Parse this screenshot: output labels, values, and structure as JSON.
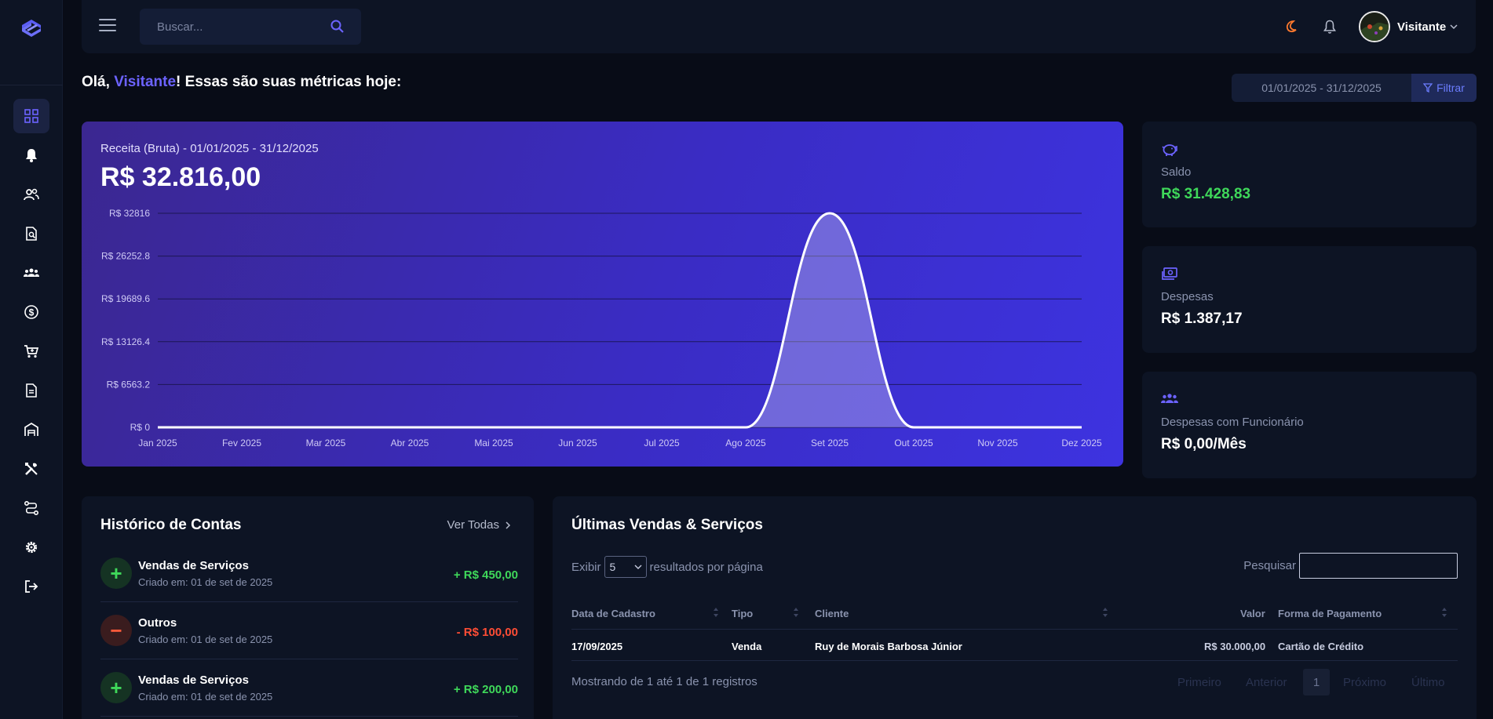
{
  "topbar": {
    "search_placeholder": "Buscar...",
    "user_name": "Visitante"
  },
  "greeting": {
    "prefix": "Olá, ",
    "name": "Visitante",
    "suffix": "! Essas são suas métricas hoje:"
  },
  "filter": {
    "date_range": "01/01/2025 - 31/12/2025",
    "button_label": "Filtrar"
  },
  "revenue": {
    "label": "Receita (Bruta) - 01/01/2025 - 31/12/2025",
    "value": "R$ 32.816,00"
  },
  "chart_data": {
    "type": "area",
    "categories": [
      "Jan 2025",
      "Fev 2025",
      "Mar 2025",
      "Abr 2025",
      "Mai 2025",
      "Jun 2025",
      "Jul 2025",
      "Ago 2025",
      "Set 2025",
      "Out 2025",
      "Nov 2025",
      "Dez 2025"
    ],
    "values": [
      0,
      0,
      0,
      0,
      0,
      0,
      0,
      0,
      32816,
      0,
      0,
      0
    ],
    "y_ticks": [
      "R$ 0",
      "R$ 6563.2",
      "R$ 13126.4",
      "R$ 19689.6",
      "R$ 26252.8",
      "R$ 32816"
    ],
    "ylim": [
      0,
      32816
    ],
    "grid": true,
    "line_color": "#ffffff"
  },
  "stats": [
    {
      "icon": "piggy-bank-icon",
      "label": "Saldo",
      "value": "R$ 31.428,83",
      "color": "#3fd85a"
    },
    {
      "icon": "money-icon",
      "label": "Despesas",
      "value": "R$ 1.387,17",
      "color": "#ffffff"
    },
    {
      "icon": "employees-icon",
      "label": "Despesas com Funcionário",
      "value": "R$ 0,00/Mês",
      "color": "#ffffff"
    }
  ],
  "history": {
    "title": "Histórico de Contas",
    "see_all": "Ver Todas",
    "items": [
      {
        "title": "Vendas de Serviços",
        "subtitle": "Criado em: 01 de set de 2025",
        "amount": "+ R$ 450,00",
        "type": "plus"
      },
      {
        "title": "Outros",
        "subtitle": "Criado em: 01 de set de 2025",
        "amount": "- R$ 100,00",
        "type": "minus"
      },
      {
        "title": "Vendas de Serviços",
        "subtitle": "Criado em: 01 de set de 2025",
        "amount": "+ R$ 200,00",
        "type": "plus"
      }
    ]
  },
  "sales": {
    "title": "Últimas Vendas & Serviços",
    "show_prefix": "Exibir",
    "show_value": "5",
    "show_suffix": "resultados por página",
    "search_label": "Pesquisar",
    "columns": {
      "date": "Data de Cadastro",
      "type": "Tipo",
      "client": "Cliente",
      "value": "Valor",
      "payment": "Forma de Pagamento"
    },
    "rows": [
      {
        "date": "17/09/2025",
        "type": "Venda",
        "client": "Ruy de Morais Barbosa Júnior",
        "value": "R$ 30.000,00",
        "payment": "Cartão de Crédito"
      }
    ],
    "info": "Mostrando de 1 até 1 de 1 registros",
    "pagination": {
      "first": "Primeiro",
      "prev": "Anterior",
      "current": "1",
      "next": "Próximo",
      "last": "Último"
    }
  },
  "colors": {
    "accent": "#6c63ff",
    "positive": "#3fd85a",
    "negative": "#ff4d35",
    "background": "#080c17",
    "card": "#0d1424"
  }
}
